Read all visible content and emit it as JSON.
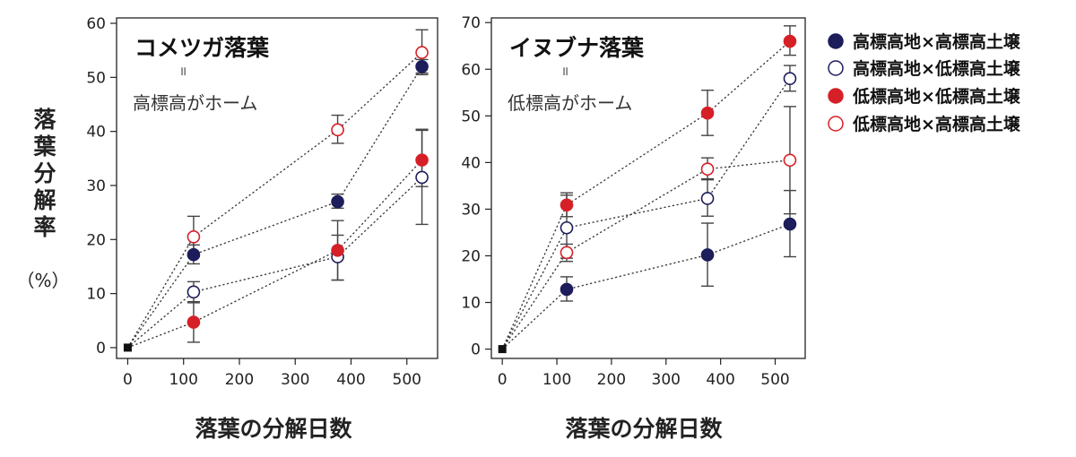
{
  "ylabel": {
    "chars": [
      "落",
      "葉",
      "分",
      "解",
      "率"
    ],
    "unit": "（%）"
  },
  "xlabel": "落葉の分解日数",
  "colors": {
    "navy": "#1c1d5a",
    "red": "#d62027",
    "axis": "#222222",
    "line": "#333333"
  },
  "legend": [
    {
      "label": "高標高地×高標高土壌",
      "marker": "navy-filled"
    },
    {
      "label": "高標高地×低標高土壌",
      "marker": "navy-open"
    },
    {
      "label": "低標高地×低標高土壌",
      "marker": "red-filled"
    },
    {
      "label": "低標高地×高標高土壌",
      "marker": "red-open"
    }
  ],
  "chart_data": [
    {
      "type": "scatter",
      "title": "コメツガ落葉",
      "subtitle_equals": "॥",
      "subtitle": "高標高がホーム",
      "x_ticks": [
        0,
        100,
        200,
        300,
        400,
        500
      ],
      "y_ticks": [
        0,
        10,
        20,
        30,
        40,
        50,
        60
      ],
      "xlim": [
        -20,
        555
      ],
      "ylim": [
        -2,
        61
      ],
      "origin": [
        0,
        0
      ],
      "series": [
        {
          "name": "高標高地×高標高土壌",
          "marker": "navy-filled",
          "points": [
            {
              "x": 118,
              "y": 17.2,
              "lo": 15.5,
              "hi": 19.0
            },
            {
              "x": 376,
              "y": 27.0,
              "lo": 25.8,
              "hi": 28.4
            },
            {
              "x": 527,
              "y": 52.0,
              "lo": 50.8,
              "hi": 53.3
            }
          ]
        },
        {
          "name": "高標高地×低標高土壌",
          "marker": "navy-open",
          "points": [
            {
              "x": 118,
              "y": 10.3,
              "lo": 8.5,
              "hi": 12.2
            },
            {
              "x": 376,
              "y": 16.8,
              "lo": 12.5,
              "hi": 20.8
            },
            {
              "x": 527,
              "y": 31.5,
              "lo": 22.8,
              "hi": 40.2
            }
          ]
        },
        {
          "name": "低標高地×低標高土壌",
          "marker": "red-filled",
          "points": [
            {
              "x": 118,
              "y": 4.7,
              "lo": 1.0,
              "hi": 8.3
            },
            {
              "x": 376,
              "y": 18.0,
              "lo": 12.5,
              "hi": 23.5
            },
            {
              "x": 527,
              "y": 34.7,
              "lo": 29.8,
              "hi": 40.4
            }
          ]
        },
        {
          "name": "低標高地×高標高土壌",
          "marker": "red-open",
          "points": [
            {
              "x": 118,
              "y": 20.5,
              "lo": 16.8,
              "hi": 24.3
            },
            {
              "x": 376,
              "y": 40.3,
              "lo": 37.8,
              "hi": 43.0
            },
            {
              "x": 527,
              "y": 54.6,
              "lo": 50.5,
              "hi": 58.8
            }
          ]
        }
      ]
    },
    {
      "type": "scatter",
      "title": "イヌブナ落葉",
      "subtitle_equals": "॥",
      "subtitle": "低標高がホーム",
      "x_ticks": [
        0,
        100,
        200,
        300,
        400,
        500
      ],
      "y_ticks": [
        0,
        10,
        20,
        30,
        40,
        50,
        60,
        70
      ],
      "xlim": [
        -20,
        555
      ],
      "ylim": [
        -2,
        71
      ],
      "origin": [
        0,
        0
      ],
      "series": [
        {
          "name": "高標高地×高標高土壌",
          "marker": "navy-filled",
          "points": [
            {
              "x": 118,
              "y": 12.8,
              "lo": 10.3,
              "hi": 15.5
            },
            {
              "x": 376,
              "y": 20.2,
              "lo": 13.5,
              "hi": 27.0
            },
            {
              "x": 527,
              "y": 26.8,
              "lo": 19.8,
              "hi": 34.0
            }
          ]
        },
        {
          "name": "高標高地×低標高土壌",
          "marker": "navy-open",
          "points": [
            {
              "x": 118,
              "y": 26.0,
              "lo": 19.5,
              "hi": 33.0
            },
            {
              "x": 376,
              "y": 32.3,
              "lo": 28.5,
              "hi": 36.3
            },
            {
              "x": 527,
              "y": 58.0,
              "lo": 55.3,
              "hi": 60.8
            }
          ]
        },
        {
          "name": "低標高地×低標高土壌",
          "marker": "red-filled",
          "points": [
            {
              "x": 118,
              "y": 30.9,
              "lo": 28.4,
              "hi": 33.5
            },
            {
              "x": 376,
              "y": 50.6,
              "lo": 45.8,
              "hi": 55.5
            },
            {
              "x": 527,
              "y": 66.0,
              "lo": 63.0,
              "hi": 69.3
            }
          ]
        },
        {
          "name": "低標高地×高標高土壌",
          "marker": "red-open",
          "points": [
            {
              "x": 118,
              "y": 20.7,
              "lo": 18.8,
              "hi": 22.5
            },
            {
              "x": 376,
              "y": 38.6,
              "lo": 36.5,
              "hi": 41.0
            },
            {
              "x": 527,
              "y": 40.5,
              "lo": 29.0,
              "hi": 52.0
            }
          ]
        }
      ]
    }
  ]
}
